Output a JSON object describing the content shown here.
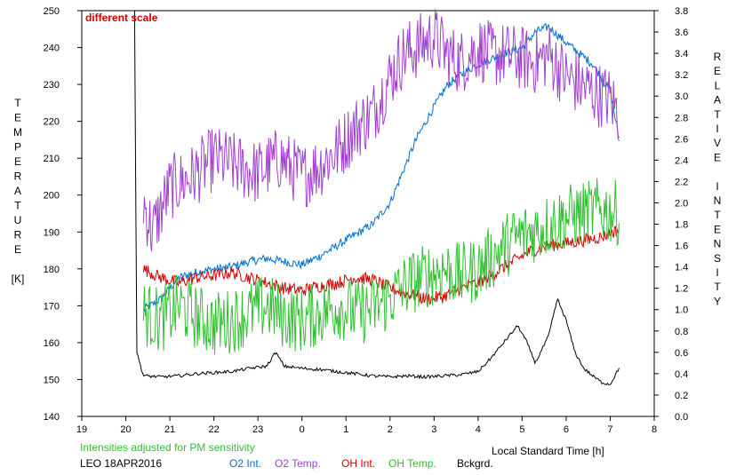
{
  "chart_data": {
    "type": "line",
    "annotation": "different scale",
    "note": "Intensities adjusted for PM sensitivity",
    "station_date": "LEO 18APR2016",
    "xlabel": "Local Standard Time [h]",
    "ylabel_left": [
      "T",
      "E",
      "M",
      "P",
      "E",
      "R",
      "A",
      "T",
      "U",
      "R",
      "E",
      "",
      "[K]"
    ],
    "ylabel_right": [
      "R",
      "E",
      "L",
      "A",
      "T",
      "I",
      "V",
      "E",
      "",
      "I",
      "N",
      "T",
      "E",
      "N",
      "S",
      "I",
      "T",
      "Y"
    ],
    "x_ticks": [
      19,
      20,
      21,
      22,
      23,
      0,
      1,
      2,
      3,
      4,
      5,
      6,
      7,
      8
    ],
    "xlim_hours": [
      19,
      32
    ],
    "y_left_ticks": [
      140,
      150,
      160,
      170,
      180,
      190,
      200,
      210,
      220,
      230,
      240,
      250
    ],
    "y_left_lim": [
      140,
      250
    ],
    "y_right_ticks": [
      "0.0",
      "0.2",
      "0.4",
      "0.6",
      "0.8",
      "1.0",
      "1.2",
      "1.4",
      "1.6",
      "1.8",
      "2.0",
      "2.2",
      "2.4",
      "2.6",
      "2.8",
      "3.0",
      "3.2",
      "3.4",
      "3.6",
      "3.8"
    ],
    "y_right_lim": [
      0,
      3.8
    ],
    "legend": [
      {
        "label": "O2 Int.",
        "color": "#0070d0"
      },
      {
        "label": "O2 Temp.",
        "color": "#a040d0"
      },
      {
        "label": "OH Int.",
        "color": "#d00000"
      },
      {
        "label": "OH Temp.",
        "color": "#30c030"
      },
      {
        "label": "Bckgrd.",
        "color": "#000000"
      }
    ],
    "series": [
      {
        "name": "O2 Int.",
        "axis": "right",
        "color": "#0070d0",
        "x": [
          20.4,
          20.8,
          21.2,
          21.6,
          22.0,
          22.4,
          22.8,
          23.2,
          23.6,
          24.0,
          24.4,
          24.8,
          25.2,
          25.6,
          26.0,
          26.3,
          26.6,
          27.0,
          27.3,
          27.6,
          28.0,
          28.3,
          28.6,
          29.0,
          29.3,
          29.6,
          30.0,
          30.3,
          30.6,
          31.0,
          31.2
        ],
        "y": [
          1.0,
          1.1,
          1.3,
          1.35,
          1.38,
          1.4,
          1.45,
          1.48,
          1.45,
          1.42,
          1.5,
          1.6,
          1.7,
          1.8,
          2.0,
          2.3,
          2.6,
          2.9,
          3.1,
          3.2,
          3.3,
          3.35,
          3.4,
          3.45,
          3.6,
          3.65,
          3.5,
          3.4,
          3.3,
          3.05,
          2.6
        ]
      },
      {
        "name": "O2 Temp.",
        "axis": "left",
        "color": "#a040d0",
        "x": [
          20.4,
          20.6,
          21.0,
          21.5,
          22.0,
          22.5,
          23.0,
          23.5,
          24.0,
          24.4,
          24.8,
          25.2,
          25.6,
          26.0,
          26.3,
          26.6,
          27.0,
          27.3,
          27.6,
          28.0,
          28.3,
          28.6,
          29.0,
          29.3,
          29.6,
          30.0,
          30.3,
          30.6,
          31.0,
          31.2
        ],
        "y": [
          198,
          190,
          202,
          205,
          210,
          208,
          206,
          210,
          205,
          208,
          212,
          218,
          222,
          232,
          238,
          240,
          243,
          238,
          236,
          240,
          238,
          238,
          237,
          236,
          238,
          232,
          230,
          228,
          226,
          222
        ]
      },
      {
        "name": "OH Int.",
        "axis": "right",
        "color": "#d00000",
        "x": [
          20.4,
          20.8,
          21.2,
          21.6,
          22.0,
          22.4,
          22.8,
          23.2,
          23.6,
          24.0,
          24.4,
          24.8,
          25.2,
          25.6,
          26.0,
          26.4,
          26.8,
          27.2,
          27.6,
          28.0,
          28.4,
          28.8,
          29.2,
          29.6,
          30.0,
          30.4,
          30.8,
          31.2
        ],
        "y": [
          1.38,
          1.3,
          1.25,
          1.3,
          1.32,
          1.35,
          1.3,
          1.25,
          1.2,
          1.18,
          1.22,
          1.25,
          1.3,
          1.28,
          1.2,
          1.15,
          1.1,
          1.12,
          1.2,
          1.25,
          1.35,
          1.45,
          1.55,
          1.6,
          1.62,
          1.65,
          1.68,
          1.75
        ]
      },
      {
        "name": "OH Temp.",
        "axis": "left",
        "color": "#30c030",
        "x": [
          20.4,
          20.8,
          21.2,
          21.6,
          22.0,
          22.4,
          22.8,
          23.2,
          23.6,
          24.0,
          24.4,
          24.8,
          25.2,
          25.6,
          26.0,
          26.4,
          26.8,
          27.2,
          27.6,
          28.0,
          28.4,
          28.8,
          29.2,
          29.6,
          30.0,
          30.4,
          30.8,
          31.2
        ],
        "y": [
          168,
          166,
          170,
          167,
          165,
          166,
          168,
          170,
          167,
          166,
          168,
          170,
          168,
          169,
          172,
          176,
          178,
          180,
          178,
          180,
          184,
          188,
          190,
          192,
          194,
          195,
          196,
          195
        ]
      },
      {
        "name": "Bckgrd.",
        "axis": "right",
        "color": "#000000",
        "x": [
          20.2,
          20.25,
          20.4,
          20.8,
          21.2,
          21.6,
          22.0,
          22.4,
          22.8,
          23.2,
          23.4,
          23.6,
          24.0,
          24.4,
          24.8,
          25.2,
          25.6,
          26.0,
          26.4,
          26.8,
          27.2,
          27.6,
          28.0,
          28.3,
          28.6,
          28.9,
          29.1,
          29.3,
          29.6,
          29.8,
          30.0,
          30.2,
          30.4,
          30.6,
          30.8,
          31.0,
          31.2
        ],
        "y": [
          3.8,
          0.6,
          0.38,
          0.37,
          0.38,
          0.4,
          0.41,
          0.42,
          0.45,
          0.47,
          0.6,
          0.47,
          0.45,
          0.44,
          0.42,
          0.4,
          0.38,
          0.37,
          0.38,
          0.37,
          0.38,
          0.39,
          0.42,
          0.55,
          0.7,
          0.85,
          0.7,
          0.5,
          0.75,
          1.1,
          0.9,
          0.6,
          0.45,
          0.38,
          0.32,
          0.3,
          0.45
        ]
      }
    ]
  }
}
